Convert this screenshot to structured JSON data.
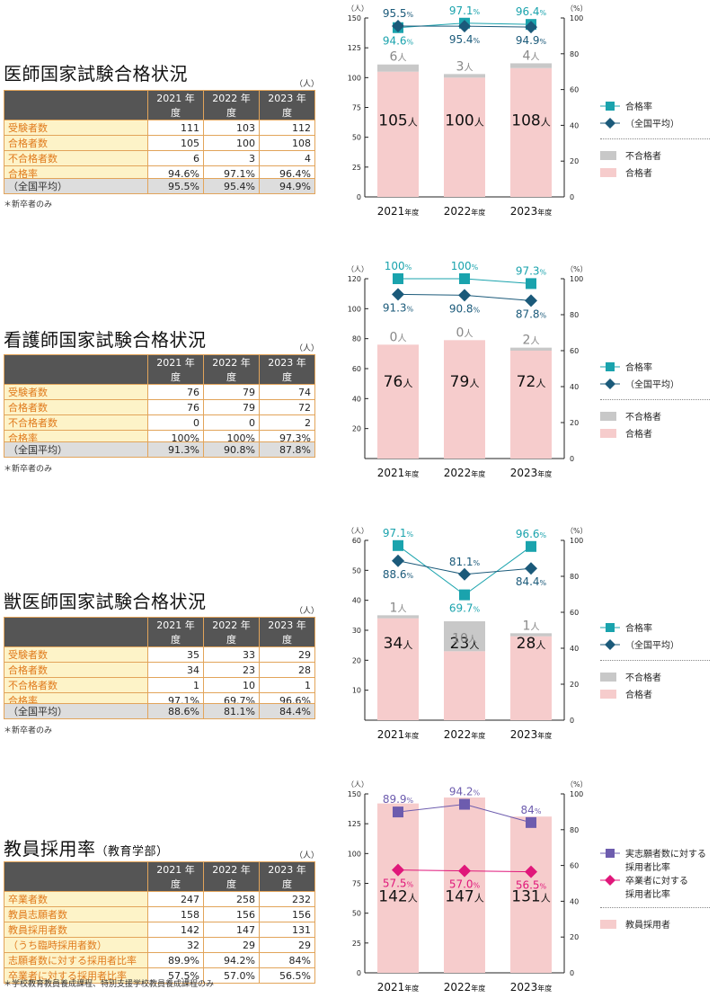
{
  "colors": {
    "pass_bar": "#f6cccc",
    "fail_bar": "#c8c8c8",
    "rate_line": "#1aa3ad",
    "national_line": "#1b5a7a",
    "teacher_rate1": "#6d5cae",
    "teacher_rate2": "#e0177a",
    "table_header": "#555555",
    "table_label_bg": "#fdf3c8",
    "table_label_text": "#e07a1c",
    "table_border": "#e2a45a"
  },
  "sections": [
    {
      "title": "医師国家試験合格状況",
      "title_sub": "",
      "unit": "（人）",
      "years": [
        "2021 年度",
        "2022 年度",
        "2023 年度"
      ],
      "rows": [
        {
          "label": "受験者数",
          "values": [
            "111",
            "103",
            "112"
          ]
        },
        {
          "label": "合格者数",
          "values": [
            "105",
            "100",
            "108"
          ]
        },
        {
          "label": "不合格者数",
          "values": [
            "6",
            "3",
            "4"
          ]
        },
        {
          "label": "合格率",
          "values": [
            "94.6%",
            "97.1%",
            "96.4%"
          ]
        }
      ],
      "national": {
        "label": "（全国平均）",
        "values": [
          "95.5%",
          "95.4%",
          "94.9%"
        ]
      },
      "note": "＊新卒者のみ",
      "legend": [
        "合格率",
        "（全国平均）",
        "不合格者",
        "合格者"
      ]
    },
    {
      "title": "看護師国家試験合格状況",
      "title_sub": "",
      "unit": "（人）",
      "years": [
        "2021 年度",
        "2022 年度",
        "2023 年度"
      ],
      "rows": [
        {
          "label": "受験者数",
          "values": [
            "76",
            "79",
            "74"
          ]
        },
        {
          "label": "合格者数",
          "values": [
            "76",
            "79",
            "72"
          ]
        },
        {
          "label": "不合格者数",
          "values": [
            "0",
            "0",
            "2"
          ]
        },
        {
          "label": "合格率",
          "values": [
            "100%",
            "100%",
            "97.3%"
          ]
        }
      ],
      "national": {
        "label": "（全国平均）",
        "values": [
          "91.3%",
          "90.8%",
          "87.8%"
        ]
      },
      "note": "＊新卒者のみ",
      "legend": [
        "合格率",
        "（全国平均）",
        "不合格者",
        "合格者"
      ]
    },
    {
      "title": "獣医師国家試験合格状況",
      "title_sub": "",
      "unit": "（人）",
      "years": [
        "2021 年度",
        "2022 年度",
        "2023 年度"
      ],
      "rows": [
        {
          "label": "受験者数",
          "values": [
            "35",
            "33",
            "29"
          ]
        },
        {
          "label": "合格者数",
          "values": [
            "34",
            "23",
            "28"
          ]
        },
        {
          "label": "不合格者数",
          "values": [
            "1",
            "10",
            "1"
          ]
        },
        {
          "label": "合格率",
          "values": [
            "97.1%",
            "69.7%",
            "96.6%"
          ]
        }
      ],
      "national": {
        "label": "（全国平均）",
        "values": [
          "88.6%",
          "81.1%",
          "84.4%"
        ]
      },
      "note": "＊新卒者のみ",
      "legend": [
        "合格率",
        "（全国平均）",
        "不合格者",
        "合格者"
      ]
    },
    {
      "title": "教員採用率",
      "title_sub": "（教育学部）",
      "unit": "（人）",
      "years": [
        "2021 年度",
        "2022 年度",
        "2023 年度"
      ],
      "rows": [
        {
          "label": "卒業者数",
          "values": [
            "247",
            "258",
            "232"
          ]
        },
        {
          "label": "教員志願者数",
          "values": [
            "158",
            "156",
            "156"
          ]
        },
        {
          "label": "教員採用者数",
          "values": [
            "142",
            "147",
            "131"
          ]
        },
        {
          "label": "（うち臨時採用者数）",
          "values": [
            "32",
            "29",
            "29"
          ]
        },
        {
          "label": "志願者数に対する採用者比率",
          "values": [
            "89.9%",
            "94.2%",
            "84%"
          ]
        },
        {
          "label": "卒業者に対する採用者比率",
          "values": [
            "57.5%",
            "57.0%",
            "56.5%"
          ]
        }
      ],
      "note": "＊学校教育教員養成課程、特別支援学校教員養成課程のみ",
      "legend": [
        "実志願者数に対する\n採用者比率",
        "卒業者に対する\n採用者比率",
        "教員採用者"
      ]
    }
  ],
  "chart_data": [
    {
      "type": "bar",
      "categories": [
        "2021",
        "2022",
        "2023"
      ],
      "category_suffix": "年度",
      "left_unit": "（人）",
      "right_unit": "（%）",
      "ylim": [
        0,
        150
      ],
      "yticks": [
        "0",
        "25",
        "50",
        "75",
        "100",
        "125",
        "150"
      ],
      "y2lim": [
        0,
        100
      ],
      "y2ticks": [
        "0",
        "20",
        "40",
        "60",
        "80",
        "100"
      ],
      "stack": [
        {
          "name": "合格者",
          "values": [
            105,
            100,
            108
          ],
          "labels": [
            "105",
            "100",
            "108"
          ]
        },
        {
          "name": "不合格者",
          "values": [
            6,
            3,
            4
          ],
          "labels": [
            "6",
            "3",
            "4"
          ]
        }
      ],
      "count_unit": "人",
      "lines": [
        {
          "name": "合格率",
          "values": [
            94.6,
            97.1,
            96.4
          ],
          "labels": [
            "94.6",
            "97.1",
            "96.4"
          ],
          "marker": "square",
          "color": "#1aa3ad"
        },
        {
          "name": "（全国平均）",
          "values": [
            95.5,
            95.4,
            94.9
          ],
          "labels": [
            "95.5",
            "95.4",
            "94.9"
          ],
          "marker": "diamond",
          "color": "#1b5a7a"
        }
      ],
      "pct_unit": "%"
    },
    {
      "type": "bar",
      "categories": [
        "2021",
        "2022",
        "2023"
      ],
      "category_suffix": "年度",
      "left_unit": "（人）",
      "right_unit": "（%）",
      "ylim": [
        0,
        120
      ],
      "yticks": [
        "20",
        "40",
        "60",
        "80",
        "100",
        "120"
      ],
      "y2lim": [
        0,
        100
      ],
      "y2ticks": [
        "0",
        "20",
        "40",
        "60",
        "80",
        "100"
      ],
      "stack": [
        {
          "name": "合格者",
          "values": [
            76,
            79,
            72
          ],
          "labels": [
            "76",
            "79",
            "72"
          ]
        },
        {
          "name": "不合格者",
          "values": [
            0,
            0,
            2
          ],
          "labels": [
            "0",
            "0",
            "2"
          ]
        }
      ],
      "count_unit": "人",
      "lines": [
        {
          "name": "合格率",
          "values": [
            100,
            100,
            97.3
          ],
          "labels": [
            "100",
            "100",
            "97.3"
          ],
          "marker": "square",
          "color": "#1aa3ad"
        },
        {
          "name": "（全国平均）",
          "values": [
            91.3,
            90.8,
            87.8
          ],
          "labels": [
            "91.3",
            "90.8",
            "87.8"
          ],
          "marker": "diamond",
          "color": "#1b5a7a"
        }
      ],
      "pct_unit": "%"
    },
    {
      "type": "bar",
      "categories": [
        "2021",
        "2022",
        "2023"
      ],
      "category_suffix": "年度",
      "left_unit": "（人）",
      "right_unit": "（%）",
      "ylim": [
        0,
        60
      ],
      "yticks": [
        "10",
        "20",
        "30",
        "40",
        "50",
        "60"
      ],
      "y2lim": [
        0,
        100
      ],
      "y2ticks": [
        "0",
        "20",
        "40",
        "60",
        "80",
        "100"
      ],
      "stack": [
        {
          "name": "合格者",
          "values": [
            34,
            23,
            28
          ],
          "labels": [
            "34",
            "23",
            "28"
          ]
        },
        {
          "name": "不合格者",
          "values": [
            1,
            10,
            1
          ],
          "labels": [
            "1",
            "10",
            "1"
          ]
        }
      ],
      "count_unit": "人",
      "lines": [
        {
          "name": "合格率",
          "values": [
            97.1,
            69.7,
            96.6
          ],
          "labels": [
            "97.1",
            "69.7",
            "96.6"
          ],
          "marker": "square",
          "color": "#1aa3ad"
        },
        {
          "name": "（全国平均）",
          "values": [
            88.6,
            81.1,
            84.4
          ],
          "labels": [
            "88.6",
            "81.1",
            "84.4"
          ],
          "marker": "diamond",
          "color": "#1b5a7a"
        }
      ],
      "pct_unit": "%"
    },
    {
      "type": "bar",
      "categories": [
        "2021",
        "2022",
        "2023"
      ],
      "category_suffix": "年度",
      "left_unit": "（人）",
      "right_unit": "（%）",
      "ylim": [
        0,
        150
      ],
      "yticks": [
        "0",
        "25",
        "50",
        "75",
        "100",
        "125",
        "150"
      ],
      "y2lim": [
        0,
        100
      ],
      "y2ticks": [
        "0",
        "20",
        "40",
        "60",
        "80",
        "100"
      ],
      "stack": [
        {
          "name": "教員採用者",
          "values": [
            142,
            147,
            131
          ],
          "labels": [
            "142",
            "147",
            "131"
          ]
        }
      ],
      "count_unit": "人",
      "lines": [
        {
          "name": "実志願者数に対する採用者比率",
          "values": [
            89.9,
            94.2,
            84
          ],
          "labels": [
            "89.9",
            "94.2",
            "84"
          ],
          "marker": "square",
          "color": "#6d5cae"
        },
        {
          "name": "卒業者に対する採用者比率",
          "values": [
            57.5,
            57.0,
            56.5
          ],
          "labels": [
            "57.5",
            "57.0",
            "56.5"
          ],
          "marker": "diamond",
          "color": "#e0177a"
        }
      ],
      "pct_unit": "%"
    }
  ]
}
